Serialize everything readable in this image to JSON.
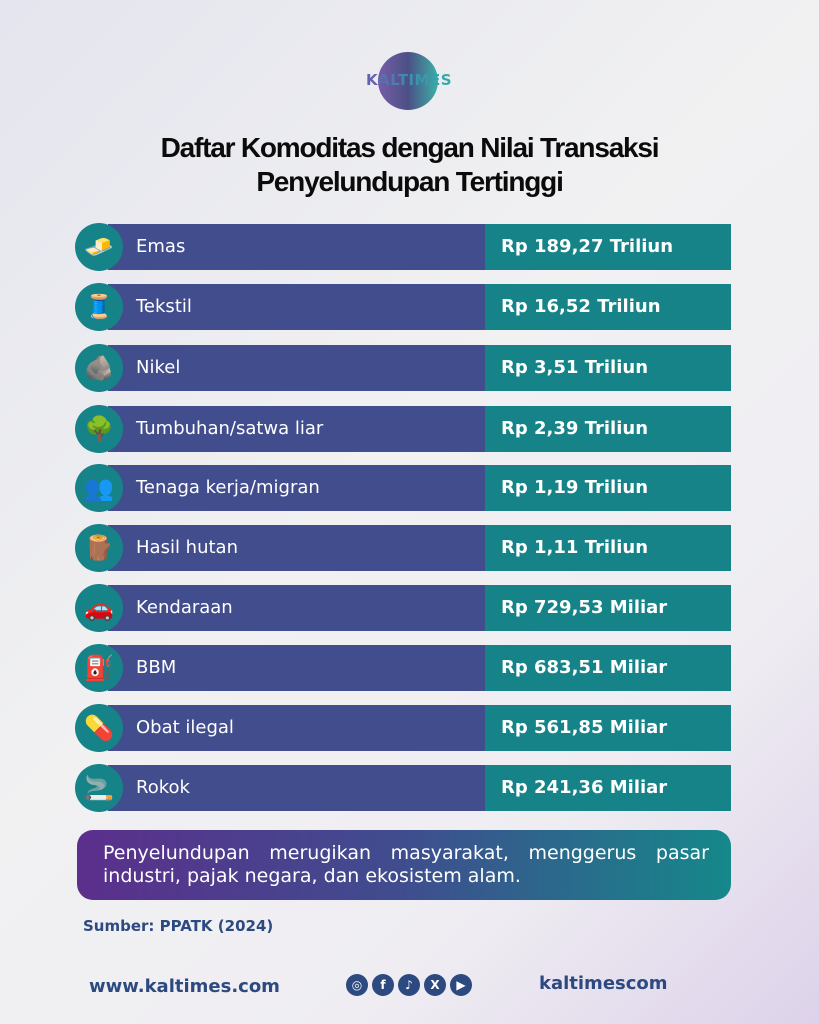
{
  "brand": {
    "logo_text": "KALTIMES"
  },
  "title": {
    "line1": "Daftar Komoditas dengan Nilai Transaksi",
    "line2": "Penyelundupan Tertinggi"
  },
  "colors": {
    "bar": "#424d8e",
    "value": "#158387",
    "text": "#2d4a80"
  },
  "chart_data": {
    "type": "table",
    "columns": [
      "Komoditas",
      "Nilai Transaksi"
    ],
    "rows": [
      {
        "name": "Emas",
        "value": "Rp 189,27 Triliun",
        "icon": "gold-bars"
      },
      {
        "name": "Tekstil",
        "value": "Rp 16,52 Triliun",
        "icon": "thread-spools"
      },
      {
        "name": "Nikel",
        "value": "Rp 3,51 Triliun",
        "icon": "nickel-ore"
      },
      {
        "name": "Tumbuhan/satwa liar",
        "value": "Rp 2,39 Triliun",
        "icon": "tree"
      },
      {
        "name": "Tenaga kerja/migran",
        "value": "Rp 1,19 Triliun",
        "icon": "people"
      },
      {
        "name": "Hasil hutan",
        "value": "Rp 1,11 Triliun",
        "icon": "logs"
      },
      {
        "name": "Kendaraan",
        "value": "Rp 729,53 Miliar",
        "icon": "car"
      },
      {
        "name": "BBM",
        "value": "Rp 683,51 Miliar",
        "icon": "fuel-pump"
      },
      {
        "name": "Obat ilegal",
        "value": "Rp 561,85 Miliar",
        "icon": "pills"
      },
      {
        "name": "Rokok",
        "value": "Rp 241,36 Miliar",
        "icon": "cigarette"
      }
    ]
  },
  "caption": "Penyelundupan merugikan masyarakat, menggerus pasar industri, pajak negara, dan ekosistem alam.",
  "source": "Sumber: PPATK (2024)",
  "footer": {
    "website": "www.kaltimes.com",
    "handle": "kaltimescom",
    "socials": [
      {
        "icon": "instagram",
        "glyph": "◎"
      },
      {
        "icon": "facebook",
        "glyph": "f"
      },
      {
        "icon": "tiktok",
        "glyph": "♪"
      },
      {
        "icon": "x",
        "glyph": "X"
      },
      {
        "icon": "youtube",
        "glyph": "▶"
      }
    ]
  }
}
